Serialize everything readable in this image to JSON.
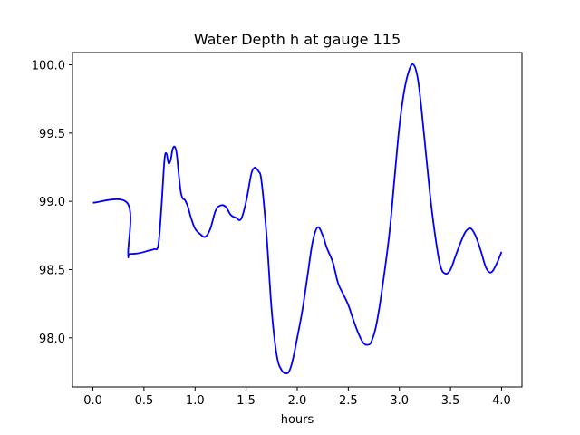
{
  "chart_data": {
    "type": "line",
    "title": "Water Depth h at gauge 115",
    "xlabel": "hours",
    "ylabel": "",
    "xlim": [
      -0.2,
      4.2
    ],
    "ylim": [
      97.64,
      100.09
    ],
    "xticks": [
      0.0,
      0.5,
      1.0,
      1.5,
      2.0,
      2.5,
      3.0,
      3.5,
      4.0
    ],
    "xtick_labels": [
      "0.0",
      "0.5",
      "1.0",
      "1.5",
      "2.0",
      "2.5",
      "3.0",
      "3.5",
      "4.0"
    ],
    "yticks": [
      98.0,
      98.5,
      99.0,
      99.5,
      100.0
    ],
    "ytick_labels": [
      "98.0",
      "98.5",
      "99.0",
      "99.5",
      "100.0"
    ],
    "grid": false,
    "series": [
      {
        "color": "#0000ff",
        "x": [
          0.0,
          0.34,
          0.345,
          0.36,
          0.45,
          0.55,
          0.6,
          0.64,
          0.67,
          0.7,
          0.72,
          0.74,
          0.76,
          0.78,
          0.8,
          0.82,
          0.84,
          0.86,
          0.88,
          0.9,
          0.93,
          0.96,
          1.0,
          1.05,
          1.1,
          1.15,
          1.2,
          1.25,
          1.3,
          1.35,
          1.4,
          1.45,
          1.5,
          1.55,
          1.58,
          1.6,
          1.62,
          1.65,
          1.7,
          1.75,
          1.8,
          1.85,
          1.9,
          1.93,
          1.96,
          2.0,
          2.05,
          2.1,
          2.15,
          2.2,
          2.25,
          2.28,
          2.3,
          2.35,
          2.4,
          2.45,
          2.5,
          2.55,
          2.6,
          2.65,
          2.7,
          2.73,
          2.77,
          2.82,
          2.9,
          2.95,
          3.0,
          3.05,
          3.1,
          3.14,
          3.18,
          3.22,
          3.3,
          3.35,
          3.4,
          3.45,
          3.5,
          3.55,
          3.6,
          3.65,
          3.7,
          3.75,
          3.8,
          3.85,
          3.9,
          3.95,
          4.0
        ],
        "y": [
          98.99,
          98.985,
          98.62,
          98.615,
          98.62,
          98.64,
          98.65,
          98.68,
          98.95,
          99.3,
          99.35,
          99.28,
          99.3,
          99.38,
          99.4,
          99.35,
          99.2,
          99.07,
          99.02,
          99.01,
          98.96,
          98.88,
          98.8,
          98.76,
          98.74,
          98.8,
          98.93,
          98.97,
          98.96,
          98.9,
          98.88,
          98.87,
          99.0,
          99.2,
          99.245,
          99.24,
          99.22,
          99.15,
          98.75,
          98.2,
          97.87,
          97.76,
          97.74,
          97.77,
          97.85,
          98.0,
          98.2,
          98.45,
          98.7,
          98.81,
          98.75,
          98.68,
          98.64,
          98.55,
          98.4,
          98.32,
          98.24,
          98.13,
          98.03,
          97.96,
          97.95,
          97.98,
          98.08,
          98.3,
          98.75,
          99.15,
          99.55,
          99.82,
          99.97,
          100.0,
          99.9,
          99.65,
          99.05,
          98.75,
          98.53,
          98.47,
          98.5,
          98.6,
          98.7,
          98.78,
          98.8,
          98.74,
          98.63,
          98.51,
          98.48,
          98.54,
          98.63
        ]
      }
    ]
  }
}
